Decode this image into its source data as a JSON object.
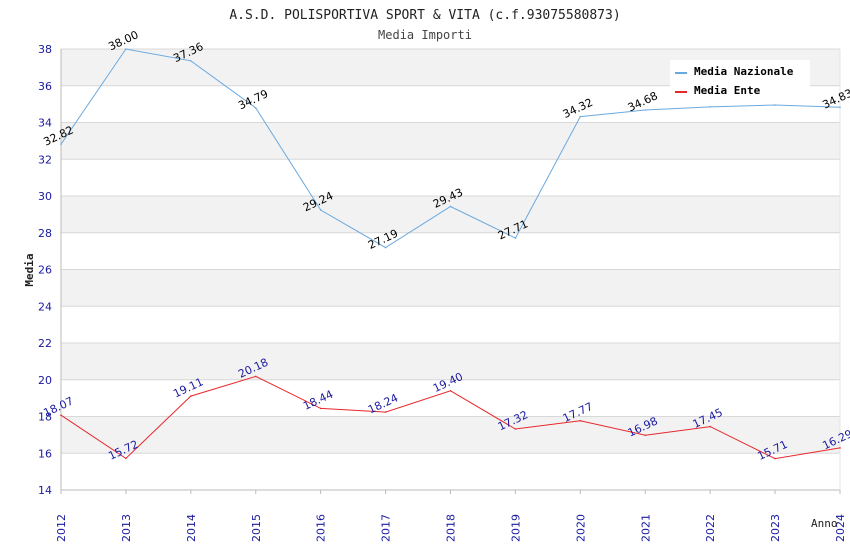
{
  "chart_data": {
    "type": "line",
    "title": "A.S.D. POLISPORTIVA SPORT & VITA (c.f.93075580873)",
    "subtitle": "Media Importi",
    "xlabel": "Anno",
    "ylabel": "Media",
    "categories": [
      "2012",
      "2013",
      "2014",
      "2015",
      "2016",
      "2017",
      "2018",
      "2019",
      "2020",
      "2021",
      "2022",
      "2023",
      "2024"
    ],
    "y_ticks": [
      "14",
      "16",
      "18",
      "20",
      "22",
      "24",
      "26",
      "28",
      "30",
      "32",
      "34",
      "36",
      "38"
    ],
    "ylim": [
      14,
      38
    ],
    "grid": true,
    "legend_position": "top-right",
    "series": [
      {
        "name": "Media Nazionale",
        "color": "#6aa9e0",
        "label_color": "#000000",
        "values": [
          32.82,
          38.0,
          37.36,
          34.79,
          29.24,
          27.19,
          29.43,
          27.71,
          34.32,
          34.68,
          34.85,
          34.95,
          34.83
        ],
        "labels": [
          "32.82",
          "38.00",
          "37.36",
          "34.79",
          "29.24",
          "27.19",
          "29.43",
          "27.71",
          "34.32",
          "34.68",
          "",
          "",
          "34.83"
        ]
      },
      {
        "name": "Media Ente",
        "color": "#e8272b",
        "label_color": "#1a1aa0",
        "values": [
          18.07,
          15.72,
          19.11,
          20.18,
          18.44,
          18.24,
          19.4,
          17.32,
          17.77,
          16.98,
          17.45,
          15.71,
          16.29
        ],
        "labels": [
          "18.07",
          "15.72",
          "19.11",
          "20.18",
          "18.44",
          "18.24",
          "19.40",
          "17.32",
          "17.77",
          "16.98",
          "17.45",
          "15.71",
          "16.29"
        ]
      }
    ]
  },
  "colors": {
    "tick_label": "#1a1aa0",
    "band": "#f2f2f2",
    "grid": "#d8d8d8",
    "axis": "#bbbbbb",
    "text": "#333333"
  }
}
